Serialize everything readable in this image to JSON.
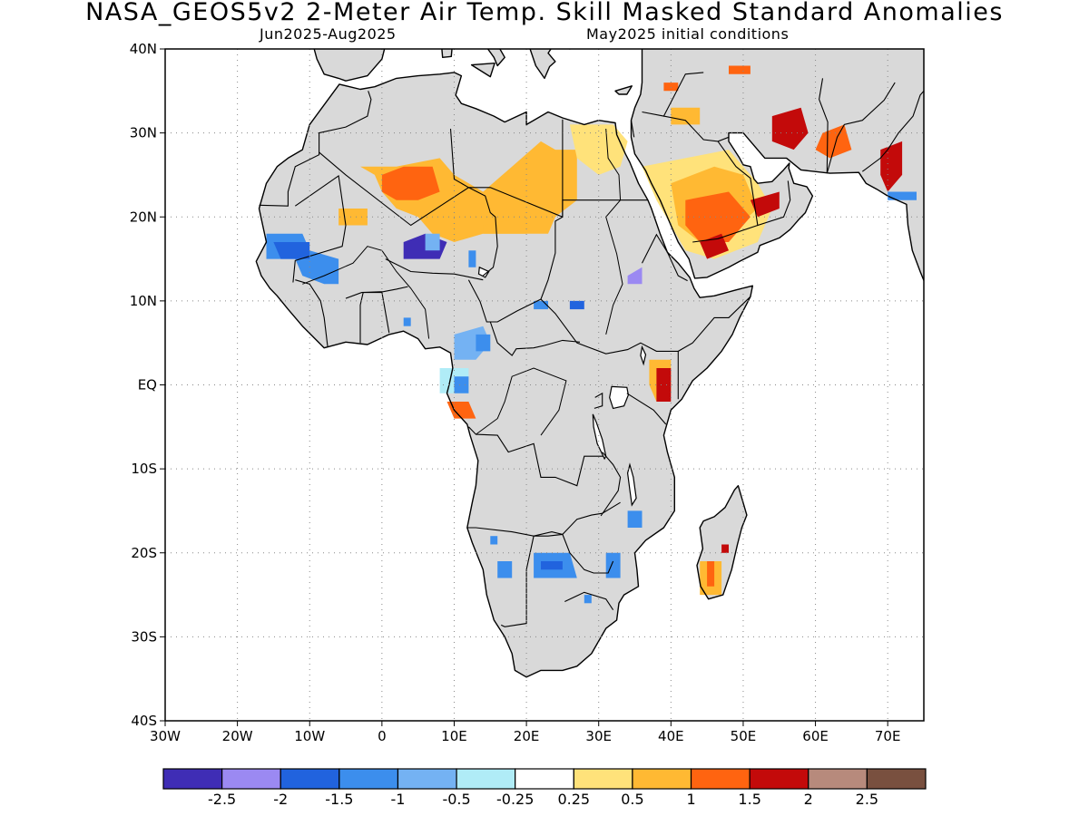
{
  "header": {
    "title": "NASA_GEOS5v2 2-Meter Air Temp. Skill Masked Standard Anomalies",
    "period": "Jun2025-Aug2025",
    "init": "May2025 initial conditions"
  },
  "map": {
    "lon_range": [
      -30,
      75
    ],
    "lat_range": [
      -40,
      40
    ],
    "lat_ticks": [
      {
        "value": 40,
        "label": "40N"
      },
      {
        "value": 30,
        "label": "30N"
      },
      {
        "value": 20,
        "label": "20N"
      },
      {
        "value": 10,
        "label": "10N"
      },
      {
        "value": 0,
        "label": "EQ"
      },
      {
        "value": -10,
        "label": "10S"
      },
      {
        "value": -20,
        "label": "20S"
      },
      {
        "value": -30,
        "label": "30S"
      },
      {
        "value": -40,
        "label": "40S"
      }
    ],
    "lon_ticks": [
      {
        "value": -30,
        "label": "30W"
      },
      {
        "value": -20,
        "label": "20W"
      },
      {
        "value": -10,
        "label": "10W"
      },
      {
        "value": 0,
        "label": "0"
      },
      {
        "value": 10,
        "label": "10E"
      },
      {
        "value": 20,
        "label": "20E"
      },
      {
        "value": 30,
        "label": "30E"
      },
      {
        "value": 40,
        "label": "40E"
      },
      {
        "value": 50,
        "label": "50E"
      },
      {
        "value": 60,
        "label": "60E"
      },
      {
        "value": 70,
        "label": "70E"
      }
    ],
    "land_color": "#d9d9d9",
    "coast_color": "#000000"
  },
  "colorbar": {
    "colors": [
      "#3f2db5",
      "#9b89f2",
      "#2163de",
      "#3c8eed",
      "#74b2f3",
      "#b0ecf7",
      "#ffffff",
      "#ffe27a",
      "#ffb933",
      "#ff6410",
      "#c30a0a",
      "#b78a7c",
      "#79503f"
    ],
    "labels": [
      "-2.5",
      "-2",
      "-1.5",
      "-1",
      "-0.5",
      "-0.25",
      "0.25",
      "0.5",
      "1",
      "1.5",
      "2",
      "2.5"
    ]
  },
  "anomaly_patches": [
    {
      "color": "#ffb933",
      "points": [
        [
          -3,
          26
        ],
        [
          2,
          26
        ],
        [
          8,
          27
        ],
        [
          10,
          25
        ],
        [
          14,
          23
        ],
        [
          18,
          26
        ],
        [
          22,
          29
        ],
        [
          24,
          28
        ],
        [
          27,
          28
        ],
        [
          27,
          22
        ],
        [
          24,
          20
        ],
        [
          23,
          18
        ],
        [
          18,
          18
        ],
        [
          14,
          18
        ],
        [
          10,
          17
        ],
        [
          7,
          18
        ],
        [
          5,
          20
        ],
        [
          2,
          21
        ],
        [
          0,
          23
        ],
        [
          -1,
          25
        ]
      ]
    },
    {
      "color": "#ff6410",
      "points": [
        [
          0,
          25
        ],
        [
          3,
          26
        ],
        [
          7,
          26
        ],
        [
          8,
          23
        ],
        [
          5,
          22
        ],
        [
          2,
          22
        ],
        [
          0,
          23
        ]
      ]
    },
    {
      "color": "#ffe27a",
      "points": [
        [
          26,
          31
        ],
        [
          32,
          31
        ],
        [
          34,
          29
        ],
        [
          33,
          26
        ],
        [
          30,
          25
        ],
        [
          27,
          27
        ]
      ]
    },
    {
      "color": "#ffe27a",
      "points": [
        [
          36,
          26
        ],
        [
          42,
          27
        ],
        [
          48,
          28
        ],
        [
          52,
          24
        ],
        [
          54,
          21
        ],
        [
          52,
          17
        ],
        [
          46,
          15
        ],
        [
          42,
          16
        ],
        [
          40,
          19
        ],
        [
          38,
          22
        ]
      ]
    },
    {
      "color": "#ffb933",
      "points": [
        [
          40,
          24
        ],
        [
          46,
          26
        ],
        [
          50,
          25
        ],
        [
          52,
          21
        ],
        [
          48,
          18
        ],
        [
          44,
          17
        ],
        [
          41,
          19
        ]
      ]
    },
    {
      "color": "#ff6410",
      "points": [
        [
          42,
          22
        ],
        [
          48,
          23
        ],
        [
          51,
          20
        ],
        [
          48,
          17
        ],
        [
          44,
          17
        ],
        [
          42,
          19
        ]
      ]
    },
    {
      "color": "#c30a0a",
      "points": [
        [
          44,
          17
        ],
        [
          47,
          18
        ],
        [
          48,
          16
        ],
        [
          45,
          15
        ]
      ]
    },
    {
      "color": "#c30a0a",
      "points": [
        [
          51,
          22
        ],
        [
          55,
          23
        ],
        [
          55,
          21
        ],
        [
          52,
          20
        ]
      ]
    },
    {
      "color": "#c30a0a",
      "points": [
        [
          54,
          32
        ],
        [
          58,
          33
        ],
        [
          59,
          30
        ],
        [
          57,
          28
        ],
        [
          54,
          29
        ]
      ]
    },
    {
      "color": "#ff6410",
      "points": [
        [
          61,
          30
        ],
        [
          64,
          31
        ],
        [
          65,
          28
        ],
        [
          62,
          27
        ],
        [
          60,
          28
        ]
      ]
    },
    {
      "color": "#c30a0a",
      "points": [
        [
          69,
          28
        ],
        [
          72,
          29
        ],
        [
          72,
          25
        ],
        [
          70,
          23
        ],
        [
          69,
          25
        ]
      ]
    },
    {
      "color": "#3c8eed",
      "points": [
        [
          70,
          23
        ],
        [
          74,
          23
        ],
        [
          74,
          22
        ],
        [
          70,
          22
        ]
      ]
    },
    {
      "color": "#ff6410",
      "points": [
        [
          48,
          38
        ],
        [
          51,
          38
        ],
        [
          51,
          37
        ],
        [
          48,
          37
        ]
      ]
    },
    {
      "color": "#ff6410",
      "points": [
        [
          39,
          36
        ],
        [
          41,
          36
        ],
        [
          41,
          35
        ],
        [
          39,
          35
        ]
      ]
    },
    {
      "color": "#ffb933",
      "points": [
        [
          40,
          33
        ],
        [
          44,
          33
        ],
        [
          44,
          31
        ],
        [
          40,
          31
        ]
      ]
    },
    {
      "color": "#ffb933",
      "points": [
        [
          -6,
          21
        ],
        [
          -2,
          21
        ],
        [
          -2,
          19
        ],
        [
          -6,
          19
        ]
      ]
    },
    {
      "color": "#ffb933",
      "points": [
        [
          14,
          19
        ],
        [
          20,
          20
        ],
        [
          20,
          18
        ],
        [
          14,
          18
        ]
      ]
    },
    {
      "color": "#3c8eed",
      "points": [
        [
          -16,
          18
        ],
        [
          -11,
          18
        ],
        [
          -10,
          16
        ],
        [
          -6,
          15
        ],
        [
          -6,
          12
        ],
        [
          -8,
          12
        ],
        [
          -11,
          13
        ],
        [
          -12,
          15
        ],
        [
          -16,
          15
        ]
      ]
    },
    {
      "color": "#2163de",
      "points": [
        [
          -15,
          17
        ],
        [
          -10,
          17
        ],
        [
          -10,
          15
        ],
        [
          -14,
          15
        ]
      ]
    },
    {
      "color": "#3f2db5",
      "points": [
        [
          3,
          17
        ],
        [
          6,
          18
        ],
        [
          9,
          17
        ],
        [
          8,
          15
        ],
        [
          3,
          15
        ]
      ]
    },
    {
      "color": "#74b2f3",
      "points": [
        [
          6,
          18
        ],
        [
          8,
          18
        ],
        [
          8,
          16
        ],
        [
          6,
          16
        ]
      ]
    },
    {
      "color": "#3c8eed",
      "points": [
        [
          12,
          16
        ],
        [
          13,
          16
        ],
        [
          13,
          14
        ],
        [
          12,
          14
        ]
      ]
    },
    {
      "color": "#9b89f2",
      "points": [
        [
          34,
          13
        ],
        [
          36,
          14
        ],
        [
          36,
          12
        ],
        [
          34,
          12
        ]
      ]
    },
    {
      "color": "#3c8eed",
      "points": [
        [
          21,
          10
        ],
        [
          23,
          10
        ],
        [
          23,
          9
        ],
        [
          21,
          9
        ]
      ]
    },
    {
      "color": "#2163de",
      "points": [
        [
          26,
          10
        ],
        [
          28,
          10
        ],
        [
          28,
          9
        ],
        [
          26,
          9
        ]
      ]
    },
    {
      "color": "#3c8eed",
      "points": [
        [
          3,
          8
        ],
        [
          4,
          8
        ],
        [
          4,
          7
        ],
        [
          3,
          7
        ]
      ]
    },
    {
      "color": "#74b2f3",
      "points": [
        [
          10,
          6
        ],
        [
          14,
          7
        ],
        [
          15,
          5
        ],
        [
          13,
          3
        ],
        [
          10,
          3
        ]
      ]
    },
    {
      "color": "#3c8eed",
      "points": [
        [
          13,
          6
        ],
        [
          15,
          6
        ],
        [
          15,
          4
        ],
        [
          13,
          4
        ]
      ]
    },
    {
      "color": "#b0ecf7",
      "points": [
        [
          8,
          2
        ],
        [
          12,
          2
        ],
        [
          12,
          -1
        ],
        [
          8,
          -1
        ]
      ]
    },
    {
      "color": "#3c8eed",
      "points": [
        [
          10,
          1
        ],
        [
          12,
          1
        ],
        [
          12,
          -1
        ],
        [
          10,
          -1
        ]
      ]
    },
    {
      "color": "#ff6410",
      "points": [
        [
          9,
          -2
        ],
        [
          12,
          -2
        ],
        [
          13,
          -4
        ],
        [
          10,
          -4
        ]
      ]
    },
    {
      "color": "#ffb933",
      "points": [
        [
          37,
          3
        ],
        [
          40,
          3
        ],
        [
          40,
          -1
        ],
        [
          38,
          -2
        ],
        [
          37,
          0
        ]
      ]
    },
    {
      "color": "#c30a0a",
      "points": [
        [
          38,
          2
        ],
        [
          40,
          2
        ],
        [
          40,
          -2
        ],
        [
          38,
          -2
        ]
      ]
    },
    {
      "color": "#3c8eed",
      "points": [
        [
          34,
          -15
        ],
        [
          36,
          -15
        ],
        [
          36,
          -17
        ],
        [
          34,
          -17
        ]
      ]
    },
    {
      "color": "#3c8eed",
      "points": [
        [
          15,
          -18
        ],
        [
          16,
          -18
        ],
        [
          16,
          -19
        ],
        [
          15,
          -19
        ]
      ]
    },
    {
      "color": "#3c8eed",
      "points": [
        [
          21,
          -20
        ],
        [
          26,
          -20
        ],
        [
          27,
          -23
        ],
        [
          21,
          -23
        ]
      ]
    },
    {
      "color": "#2163de",
      "points": [
        [
          22,
          -21
        ],
        [
          25,
          -21
        ],
        [
          25,
          -22
        ],
        [
          22,
          -22
        ]
      ]
    },
    {
      "color": "#3c8eed",
      "points": [
        [
          16,
          -21
        ],
        [
          18,
          -21
        ],
        [
          18,
          -23
        ],
        [
          16,
          -23
        ]
      ]
    },
    {
      "color": "#3c8eed",
      "points": [
        [
          31,
          -20
        ],
        [
          33,
          -20
        ],
        [
          33,
          -23
        ],
        [
          31,
          -23
        ]
      ]
    },
    {
      "color": "#3c8eed",
      "points": [
        [
          28,
          -25
        ],
        [
          29,
          -25
        ],
        [
          29,
          -26
        ],
        [
          28,
          -26
        ]
      ]
    },
    {
      "color": "#ffb933",
      "points": [
        [
          44,
          -21
        ],
        [
          47,
          -21
        ],
        [
          47,
          -25
        ],
        [
          44,
          -25
        ]
      ]
    },
    {
      "color": "#ff6410",
      "points": [
        [
          45,
          -21
        ],
        [
          46,
          -21
        ],
        [
          46,
          -24
        ],
        [
          45,
          -24
        ]
      ]
    },
    {
      "color": "#c30a0a",
      "points": [
        [
          47,
          -19
        ],
        [
          48,
          -19
        ],
        [
          48,
          -20
        ],
        [
          47,
          -20
        ]
      ]
    }
  ]
}
